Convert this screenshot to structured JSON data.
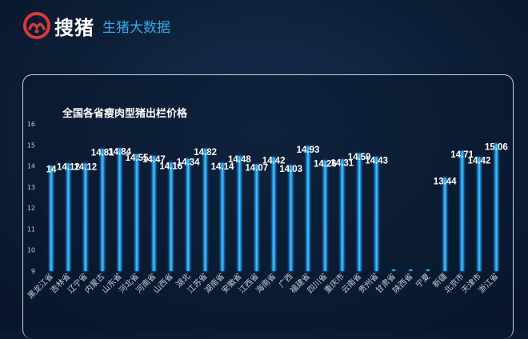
{
  "brand": {
    "name": "搜猪",
    "subtitle": "生猪大数据",
    "logo_icon": "pig-logo-icon"
  },
  "colors": {
    "bar": "#1ea0ee",
    "bar_glow": "#6fd0ff",
    "label": "#ffffff",
    "tick": "#c4cdd8",
    "logo": "#d93a3a"
  },
  "chart_data": {
    "type": "bar",
    "title": "全国各省瘦肉型猪出栏价格",
    "xlabel": "",
    "ylabel": "",
    "ylim": [
      9,
      16
    ],
    "yticks": [
      9,
      10,
      11,
      12,
      13,
      14,
      15,
      16
    ],
    "grid": false,
    "categories": [
      "黑龙江省",
      "吉林省",
      "辽宁省",
      "内蒙古",
      "山东省",
      "河北省",
      "河南省",
      "山西省",
      "湖北",
      "江苏省",
      "湖南省",
      "安徽省",
      "江西省",
      "海南省",
      "广西",
      "福建省",
      "四川省",
      "重庆市",
      "云南省",
      "贵州省",
      "甘肃省",
      "陕西省",
      "宁夏",
      "新疆",
      "北京市",
      "天津市",
      "浙江省"
    ],
    "values": [
      14,
      14.12,
      14.12,
      14.81,
      14.84,
      14.55,
      14.47,
      14.16,
      14.34,
      14.82,
      14.14,
      14.48,
      14.07,
      14.42,
      14.03,
      14.93,
      14.26,
      14.31,
      14.59,
      14.43,
      null,
      null,
      null,
      13.44,
      14.71,
      14.42,
      15.06
    ],
    "labels": [
      "14",
      "14.12",
      "14.12",
      "14.81",
      "14.84",
      "14.55",
      "14.47",
      "14.16",
      "14.34",
      "14.82",
      "14.14",
      "14.48",
      "14.07",
      "14.42",
      "14.03",
      "14.93",
      "14.26",
      "14.31",
      "14.59",
      "14.43",
      "",
      "",
      "",
      "13.44",
      "14.71",
      "14.42",
      "15.06"
    ]
  }
}
